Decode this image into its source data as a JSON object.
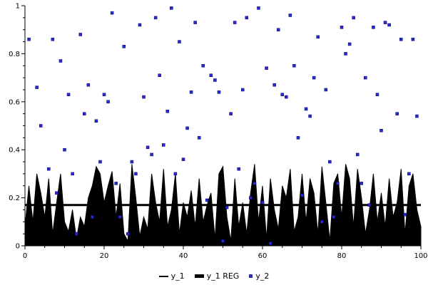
{
  "chart_data": {
    "type": "mixed",
    "title": "",
    "xlabel": "",
    "ylabel": "",
    "xlim": [
      0,
      100
    ],
    "ylim": [
      0,
      1
    ],
    "grid": false,
    "legend_position": "bottom",
    "x_ticks": [
      0,
      20,
      40,
      60,
      80,
      100
    ],
    "x_tick_labels": [
      "0",
      "20",
      "40",
      "60",
      "80",
      "100"
    ],
    "x_minor_step": 5,
    "y_ticks": [
      0,
      0.2,
      0.4,
      0.6,
      0.8,
      1
    ],
    "y_tick_labels": [
      "0",
      "0.2",
      "0.4",
      "0.6",
      "0.8",
      "1"
    ],
    "y_minor_step": 0.05,
    "axis_color": "#000000",
    "series": [
      {
        "name": "y_1",
        "type": "area",
        "color": "#000000",
        "x_start": 0,
        "x_step": 1,
        "values": [
          0.08,
          0.25,
          0.1,
          0.3,
          0.22,
          0.12,
          0.28,
          0.05,
          0.18,
          0.3,
          0.1,
          0.06,
          0.15,
          0.03,
          0.12,
          0.08,
          0.2,
          0.25,
          0.33,
          0.3,
          0.18,
          0.25,
          0.31,
          0.12,
          0.26,
          0.05,
          0.02,
          0.34,
          0.2,
          0.04,
          0.12,
          0.07,
          0.3,
          0.18,
          0.1,
          0.32,
          0.08,
          0.15,
          0.3,
          0.05,
          0.18,
          0.12,
          0.23,
          0.08,
          0.28,
          0.1,
          0.17,
          0.22,
          0.03,
          0.3,
          0.33,
          0.12,
          0.02,
          0.28,
          0.08,
          0.18,
          0.05,
          0.22,
          0.34,
          0.1,
          0.25,
          0.03,
          0.28,
          0.15,
          0.07,
          0.25,
          0.2,
          0.32,
          0.06,
          0.12,
          0.3,
          0.1,
          0.28,
          0.22,
          0.05,
          0.33,
          0.18,
          0.02,
          0.26,
          0.3,
          0.12,
          0.34,
          0.28,
          0.08,
          0.32,
          0.2,
          0.05,
          0.15,
          0.3,
          0.1,
          0.22,
          0.08,
          0.28,
          0.12,
          0.18,
          0.32,
          0.05,
          0.25,
          0.3,
          0.15,
          0.08
        ]
      },
      {
        "name": "y_1 REG",
        "type": "line",
        "color": "#000000",
        "line_width": 3,
        "x": [
          0,
          100
        ],
        "values": [
          0.17,
          0.17
        ]
      },
      {
        "name": "y_2",
        "type": "scatter",
        "marker": "square",
        "color": "#2a2ad2",
        "border_color": "#000066",
        "points": [
          [
            1,
            0.86
          ],
          [
            3,
            0.66
          ],
          [
            4,
            0.5
          ],
          [
            6,
            0.32
          ],
          [
            7,
            0.86
          ],
          [
            8,
            0.22
          ],
          [
            9,
            0.77
          ],
          [
            10,
            0.4
          ],
          [
            11,
            0.63
          ],
          [
            12,
            0.3
          ],
          [
            13,
            0.05
          ],
          [
            14,
            0.88
          ],
          [
            15,
            0.55
          ],
          [
            16,
            0.67
          ],
          [
            17,
            0.12
          ],
          [
            18,
            0.52
          ],
          [
            19,
            0.35
          ],
          [
            20,
            0.63
          ],
          [
            21,
            0.6
          ],
          [
            22,
            0.97
          ],
          [
            23,
            0.26
          ],
          [
            24,
            0.12
          ],
          [
            25,
            0.83
          ],
          [
            26,
            0.05
          ],
          [
            27,
            0.35
          ],
          [
            28,
            0.3
          ],
          [
            29,
            0.92
          ],
          [
            30,
            0.62
          ],
          [
            31,
            0.41
          ],
          [
            32,
            0.38
          ],
          [
            33,
            0.95
          ],
          [
            34,
            0.71
          ],
          [
            35,
            0.42
          ],
          [
            36,
            0.56
          ],
          [
            37,
            0.99
          ],
          [
            38,
            0.3
          ],
          [
            39,
            0.85
          ],
          [
            40,
            0.36
          ],
          [
            41,
            0.49
          ],
          [
            42,
            0.64
          ],
          [
            43,
            0.93
          ],
          [
            44,
            0.45
          ],
          [
            45,
            0.75
          ],
          [
            46,
            0.19
          ],
          [
            47,
            0.71
          ],
          [
            48,
            0.69
          ],
          [
            49,
            0.64
          ],
          [
            50,
            0.02
          ],
          [
            51,
            0.16
          ],
          [
            52,
            0.55
          ],
          [
            53,
            0.93
          ],
          [
            54,
            0.32
          ],
          [
            55,
            0.65
          ],
          [
            56,
            0.95
          ],
          [
            57,
            0.2
          ],
          [
            58,
            0.26
          ],
          [
            59,
            0.99
          ],
          [
            60,
            0.18
          ],
          [
            61,
            0.74
          ],
          [
            62,
            0.01
          ],
          [
            63,
            0.67
          ],
          [
            64,
            0.9
          ],
          [
            65,
            0.63
          ],
          [
            66,
            0.62
          ],
          [
            67,
            0.96
          ],
          [
            68,
            0.75
          ],
          [
            69,
            0.45
          ],
          [
            70,
            0.21
          ],
          [
            71,
            0.57
          ],
          [
            72,
            0.54
          ],
          [
            73,
            0.7
          ],
          [
            74,
            0.87
          ],
          [
            75,
            0.1
          ],
          [
            76,
            0.65
          ],
          [
            77,
            0.35
          ],
          [
            78,
            0.12
          ],
          [
            79,
            0.26
          ],
          [
            80,
            0.91
          ],
          [
            81,
            0.8
          ],
          [
            82,
            0.84
          ],
          [
            83,
            0.95
          ],
          [
            84,
            0.38
          ],
          [
            85,
            0.26
          ],
          [
            86,
            0.7
          ],
          [
            87,
            0.17
          ],
          [
            88,
            0.91
          ],
          [
            89,
            0.63
          ],
          [
            90,
            0.48
          ],
          [
            91,
            0.93
          ],
          [
            92,
            0.92
          ],
          [
            94,
            0.55
          ],
          [
            95,
            0.86
          ],
          [
            96,
            0.13
          ],
          [
            97,
            0.3
          ],
          [
            98,
            0.86
          ],
          [
            99,
            0.54
          ]
        ]
      }
    ]
  }
}
